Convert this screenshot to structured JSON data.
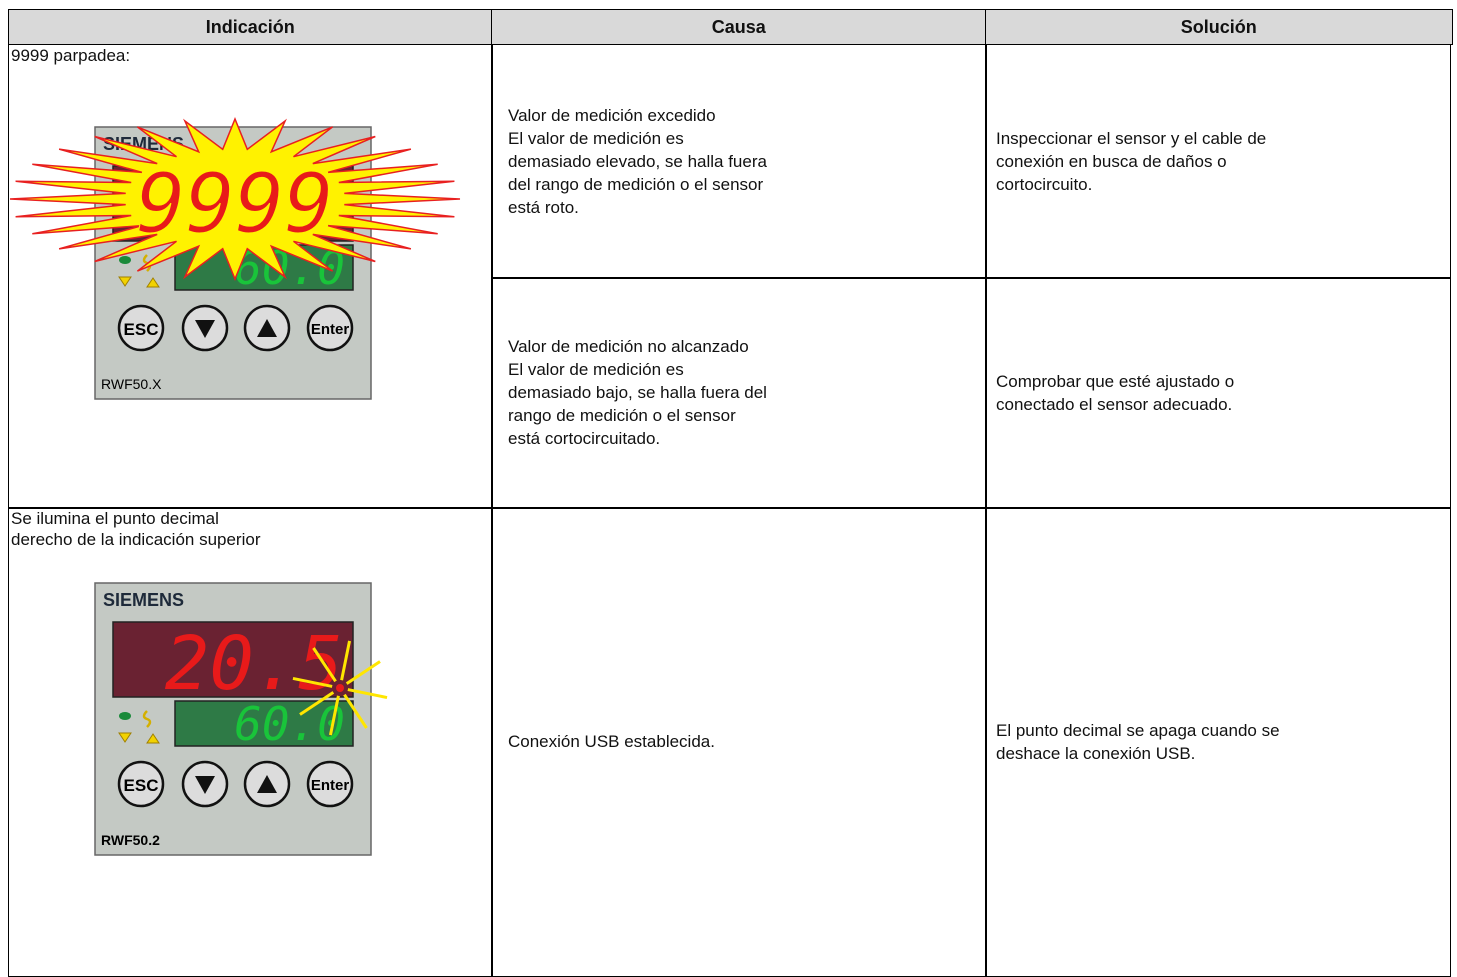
{
  "table": {
    "header": [
      "Indicación",
      "Causa",
      "Solución"
    ],
    "rows": [
      {
        "indication": [
          "9999 parpadea:"
        ],
        "device": {
          "brand": "SIEMENS",
          "top_display": "9999",
          "bottom_display": "60.0",
          "buttons": [
            "ESC",
            "Enter"
          ],
          "model": "RWF50.X"
        },
        "causes": [
          {
            "cause": [
              "Valor de medición excedido",
              "El valor de medición es",
              "demasiado elevado, se halla fuera",
              "del rango de medición o el sensor",
              "está roto."
            ],
            "solution": [
              "Inspeccionar el sensor y el cable de",
              "conexión en busca de daños o",
              "cortocircuito."
            ]
          },
          {
            "cause": [
              "Valor de medición no alcanzado",
              "El valor de medición es",
              "demasiado bajo, se halla fuera del",
              "rango de medición o el sensor",
              "está cortocircuitado."
            ],
            "solution": [
              "Comprobar que esté ajustado o",
              "conectado el sensor adecuado."
            ]
          }
        ]
      },
      {
        "indication": [
          "Se ilumina el punto decimal",
          "derecho de la indicación superior"
        ],
        "device": {
          "brand": "SIEMENS",
          "top_display": "20.5",
          "bottom_display": "60.0",
          "buttons": [
            "ESC",
            "Enter"
          ],
          "model": "RWF50.2"
        },
        "causes": [
          {
            "cause": [
              "Conexión USB establecida."
            ],
            "solution": [
              "El punto decimal se apaga cuando se",
              "deshace la conexión USB."
            ]
          }
        ]
      }
    ]
  }
}
